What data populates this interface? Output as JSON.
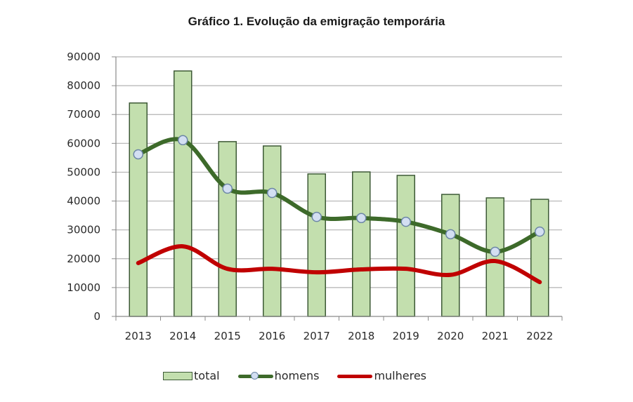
{
  "chart_data": {
    "type": "bar",
    "title": "Gráfico 1. Evolução da emigração temporária",
    "xlabel": "",
    "ylabel": "",
    "ylim": [
      0,
      90000
    ],
    "yticks": [
      "0",
      "10000",
      "20000",
      "30000",
      "40000",
      "50000",
      "60000",
      "70000",
      "80000",
      "90000"
    ],
    "grid": true,
    "legend_position": "bottom",
    "categories": [
      "2013",
      "2014",
      "2015",
      "2016",
      "2017",
      "2018",
      "2019",
      "2020",
      "2021",
      "2022"
    ],
    "series": [
      {
        "name": "total",
        "type": "bar",
        "color": "#c3dfae",
        "edge_color": "#3d5a36",
        "values": [
          74000,
          85100,
          60600,
          59100,
          49400,
          50100,
          48900,
          42300,
          41100,
          40600
        ]
      },
      {
        "name": "homens",
        "type": "line",
        "smooth": true,
        "color": "#3d6a2a",
        "marker_color": "#d3dff2",
        "values": [
          56200,
          61100,
          44300,
          42800,
          34500,
          34100,
          32800,
          28500,
          22400,
          29400
        ]
      },
      {
        "name": "mulheres",
        "type": "line",
        "smooth": true,
        "color": "#c00000",
        "values": [
          18500,
          24300,
          16500,
          16500,
          15300,
          16300,
          16500,
          14400,
          19200,
          11900
        ]
      }
    ]
  }
}
